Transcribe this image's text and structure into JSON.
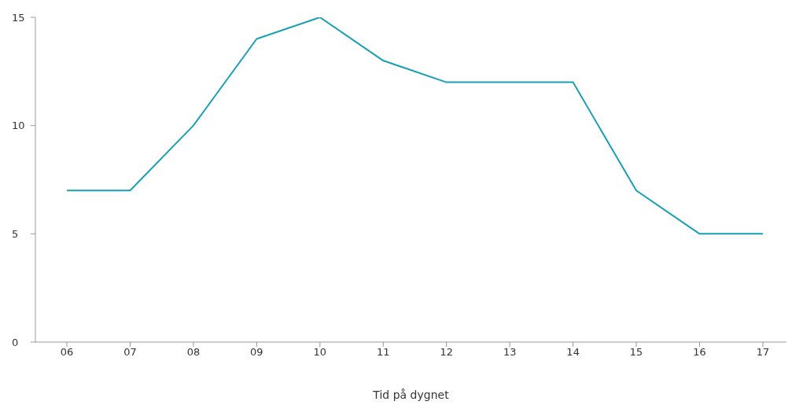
{
  "chart_data": {
    "type": "line",
    "xlabel": "Tid på dygnet",
    "categories": [
      "06",
      "07",
      "08",
      "09",
      "10",
      "11",
      "12",
      "13",
      "14",
      "15",
      "16",
      "17"
    ],
    "series": [
      {
        "color": "#17a0b4",
        "values": [
          7,
          7,
          10,
          14,
          15,
          13,
          12,
          12,
          12,
          7,
          5,
          5
        ]
      }
    ],
    "ylim": [
      0,
      15
    ],
    "yticks": [
      0,
      5,
      10,
      15
    ],
    "grid": false,
    "legend": false,
    "marker": "none",
    "line_style": "solid"
  }
}
